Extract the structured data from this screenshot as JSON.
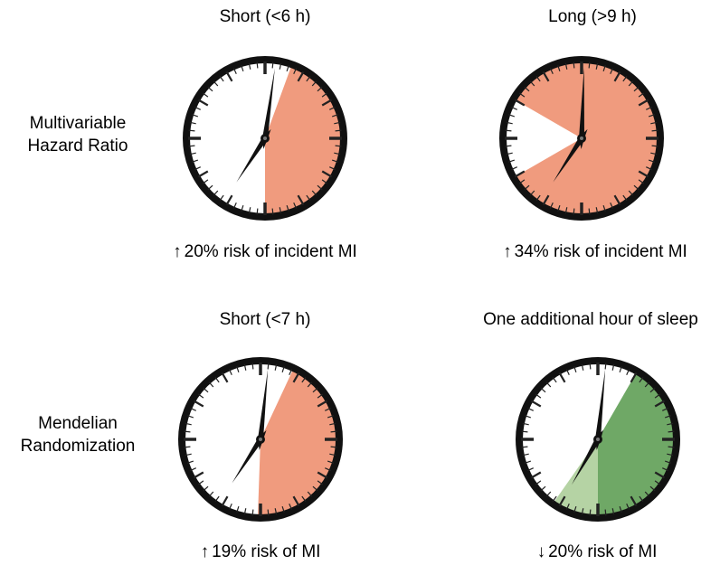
{
  "row_labels": {
    "top": [
      "Multivariable",
      "Hazard Ratio"
    ],
    "bottom": [
      "Mendelian",
      "Randomization"
    ]
  },
  "clocks": [
    {
      "title": "Short (<6 h)",
      "arrow": "↑",
      "caption": "20% risk of incident MI",
      "fill_color": "#F09B7E",
      "sector_start_deg": 20,
      "sector_end_deg": 180,
      "secondary_sector": null,
      "hour_hand_deg": 213,
      "minute_hand_deg": 8
    },
    {
      "title": "Long (>9 h)",
      "arrow": "↑",
      "caption": "34% risk of incident MI",
      "fill_color": "#F09B7E",
      "sector_start_deg": 300,
      "sector_end_deg": 600,
      "secondary_sector": null,
      "hour_hand_deg": 213,
      "minute_hand_deg": 2
    },
    {
      "title": "Short (<7 h)",
      "arrow": "↑",
      "caption": "19% risk of MI",
      "fill_color": "#F09B7E",
      "sector_start_deg": 25,
      "sector_end_deg": 182,
      "secondary_sector": null,
      "hour_hand_deg": 213,
      "minute_hand_deg": 6
    },
    {
      "title": "One additional hour of sleep",
      "arrow": "↓",
      "caption": "20% risk of MI",
      "fill_color": "#6FA866",
      "sector_start_deg": 30,
      "sector_end_deg": 180,
      "secondary_sector": {
        "color": "#B5D3A4",
        "start_deg": 0,
        "end_deg": 180,
        "center_offset": [
          -4,
          5
        ],
        "apex_deg": 210,
        "apex_len": 0
      },
      "hour_hand_deg": 210,
      "minute_hand_deg": 6
    }
  ]
}
